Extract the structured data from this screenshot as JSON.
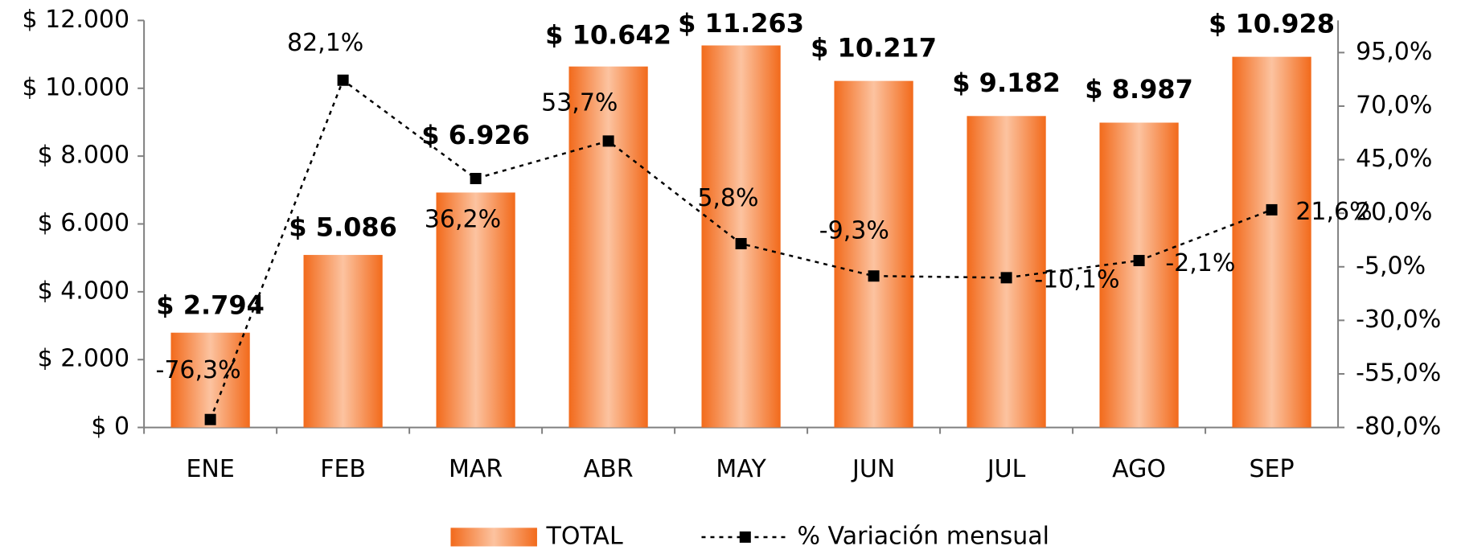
{
  "chart_data": {
    "type": "bar_line",
    "categories": [
      "ENE",
      "FEB",
      "MAR",
      "ABR",
      "MAY",
      "JUN",
      "JUL",
      "AGO",
      "SEP"
    ],
    "series": [
      {
        "name": "TOTAL",
        "type": "bar",
        "color": "#f26a1b",
        "values": [
          2794,
          5086,
          6926,
          10642,
          11263,
          10217,
          9182,
          8987,
          10928
        ],
        "value_labels": [
          "$ 2.794",
          "$ 5.086",
          "$ 6.926",
          "$ 10.642",
          "$ 11.263",
          "$ 10.217",
          "$ 9.182",
          "$ 8.987",
          "$ 10.928"
        ]
      },
      {
        "name": "% Variación mensual",
        "type": "line",
        "axis": "y2",
        "color": "#000000",
        "values": [
          -76.3,
          82.1,
          36.2,
          53.7,
          5.8,
          -9.3,
          -10.1,
          -2.1,
          21.6
        ],
        "value_labels": [
          "-76,3%",
          "82,1%",
          "36,2%",
          "53,7%",
          "5,8%",
          "-9,3%",
          "-10,1%",
          "-2,1%",
          "21,6%"
        ]
      }
    ],
    "ylim": [
      0,
      12000
    ],
    "yticks": [
      {
        "value": 0,
        "label": "$ 0"
      },
      {
        "value": 2000,
        "label": "$ 2.000"
      },
      {
        "value": 4000,
        "label": "$ 4.000"
      },
      {
        "value": 6000,
        "label": "$ 6.000"
      },
      {
        "value": 8000,
        "label": "$ 8.000"
      },
      {
        "value": 10000,
        "label": "$ 10.000"
      },
      {
        "value": 12000,
        "label": "$ 12.000"
      }
    ],
    "y2lim": [
      -80,
      110
    ],
    "y2ticks": [
      {
        "value": -80,
        "label": "-80,0%"
      },
      {
        "value": -55,
        "label": "-55,0%"
      },
      {
        "value": -30,
        "label": "-30,0%"
      },
      {
        "value": -5,
        "label": "-5,0%"
      },
      {
        "value": 20,
        "label": "20,0%"
      },
      {
        "value": 45,
        "label": "45,0%"
      },
      {
        "value": 70,
        "label": "70,0%"
      },
      {
        "value": 95,
        "label": "95,0%"
      }
    ],
    "legend": "bottom"
  }
}
